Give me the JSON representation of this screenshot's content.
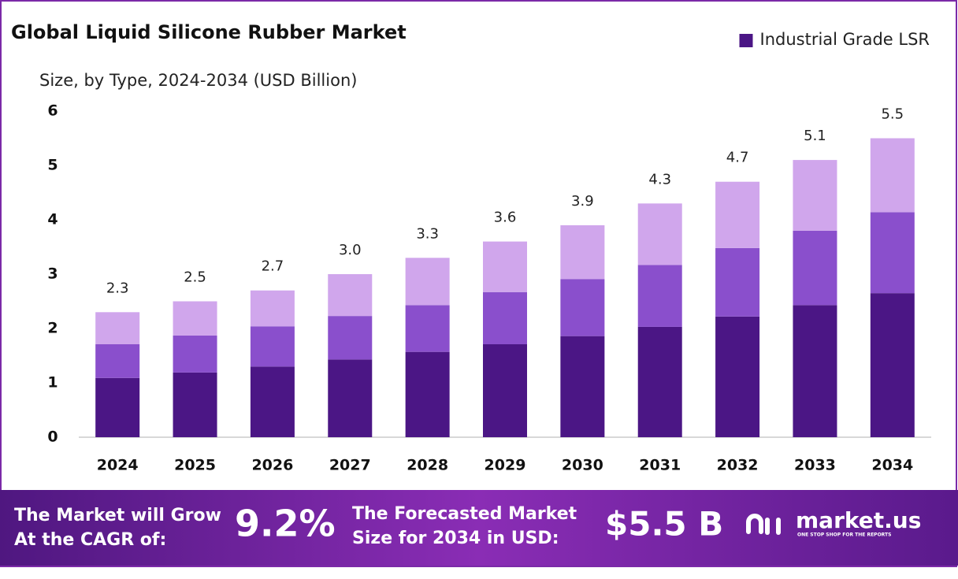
{
  "chart_data": {
    "type": "stacked_bar",
    "title": "Global Liquid Silicone Rubber Market",
    "subtitle": "Size, by Type, 2024-2034 (USD Billion)",
    "categories": [
      "2024",
      "2025",
      "2026",
      "2027",
      "2028",
      "2029",
      "2030",
      "2031",
      "2032",
      "2033",
      "2034"
    ],
    "series": [
      {
        "name": "Industrial Grade LSR",
        "color": "#4b1685",
        "values": [
          1.09,
          1.19,
          1.3,
          1.43,
          1.57,
          1.71,
          1.86,
          2.03,
          2.22,
          2.43,
          2.65
        ]
      },
      {
        "color": "#8a4fcc",
        "values": [
          0.62,
          0.68,
          0.74,
          0.8,
          0.86,
          0.96,
          1.05,
          1.14,
          1.26,
          1.37,
          1.49
        ]
      },
      {
        "color": "#d0a6ec",
        "values": [
          0.59,
          0.63,
          0.66,
          0.77,
          0.87,
          0.93,
          0.99,
          1.13,
          1.22,
          1.3,
          1.36
        ]
      }
    ],
    "totals": {
      "values": [
        2.3,
        2.5,
        2.7,
        3.0,
        3.3,
        3.6,
        3.9,
        4.3,
        4.7,
        5.1,
        5.5
      ],
      "value_labels": [
        "2.3",
        "2.5",
        "2.7",
        "3.0",
        "3.3",
        "3.6",
        "3.9",
        "4.3",
        "4.7",
        "5.1",
        "5.5"
      ]
    },
    "ylim": [
      0,
      6
    ],
    "yticks": [
      0,
      1,
      2,
      3,
      4,
      5,
      6
    ],
    "grid": false,
    "legend": "top-right"
  },
  "footer": {
    "cagr_text": [
      "The Market will Grow",
      "At the CAGR of:"
    ],
    "cagr": "9.2%",
    "size_text": [
      "The Forecasted Market",
      "Size for 2034 in USD:"
    ],
    "size": "$5.5 B",
    "brand": "market.us",
    "tagline": "ONE STOP SHOP FOR THE REPORTS"
  }
}
